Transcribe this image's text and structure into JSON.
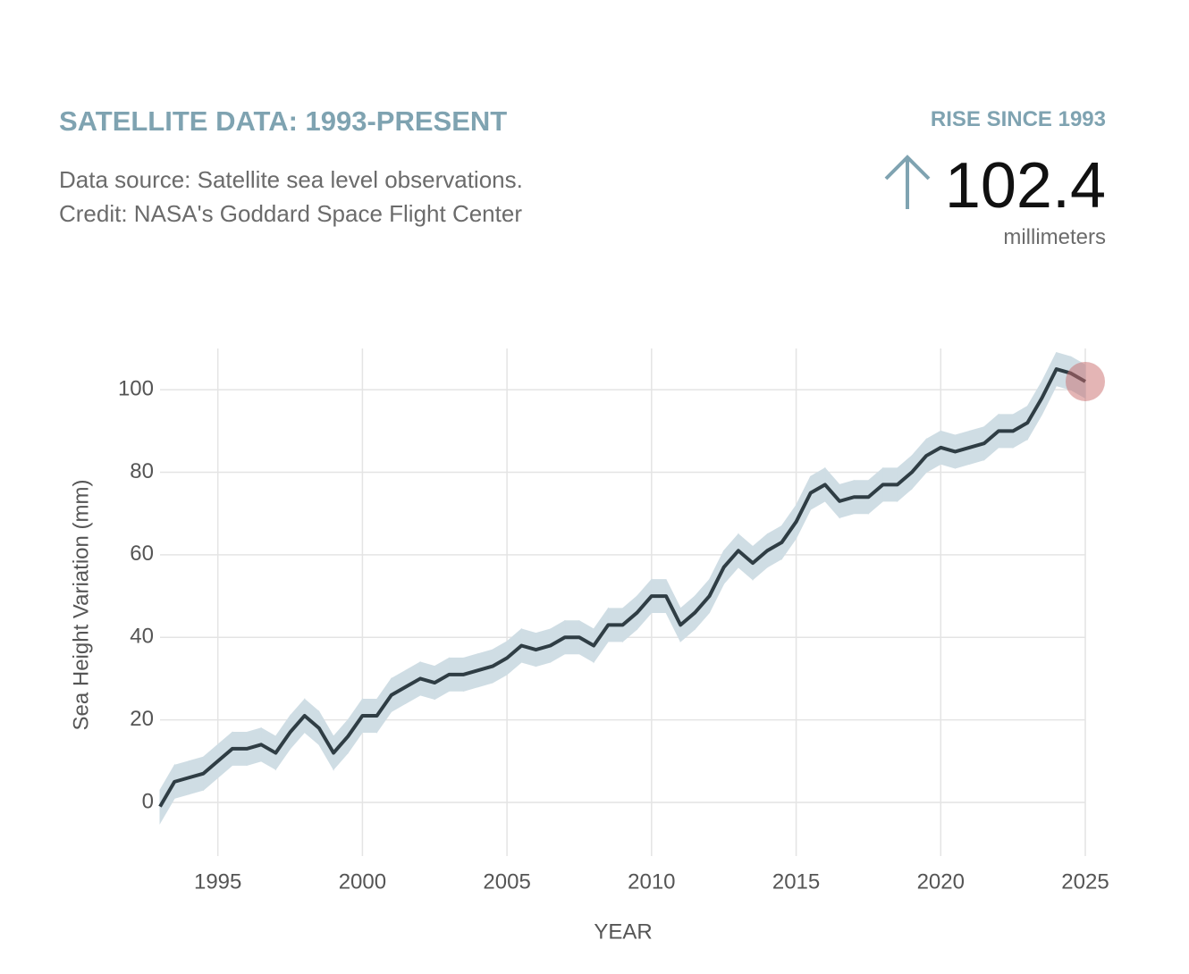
{
  "header": {
    "title": "SATELLITE DATA: 1993-PRESENT",
    "source": "Data source: Satellite sea level observations.",
    "credit": "Credit: NASA's Goddard Space Flight Center"
  },
  "summary": {
    "label": "RISE SINCE 1993",
    "value": 102.4,
    "unit": "millimeters"
  },
  "chart_data": {
    "type": "line",
    "x_label": "YEAR",
    "y_label": "Sea Height Variation (mm)",
    "x": [
      1993,
      1993.5,
      1994,
      1994.5,
      1995,
      1995.5,
      1996,
      1996.5,
      1997,
      1997.5,
      1998,
      1998.5,
      1999,
      1999.5,
      2000,
      2000.5,
      2001,
      2001.5,
      2002,
      2002.5,
      2003,
      2003.5,
      2004,
      2004.5,
      2005,
      2005.5,
      2006,
      2006.5,
      2007,
      2007.5,
      2008,
      2008.5,
      2009,
      2009.5,
      2010,
      2010.5,
      2011,
      2011.5,
      2012,
      2012.5,
      2013,
      2013.5,
      2014,
      2014.5,
      2015,
      2015.5,
      2016,
      2016.5,
      2017,
      2017.5,
      2018,
      2018.5,
      2019,
      2019.5,
      2020,
      2020.5,
      2021,
      2021.5,
      2022,
      2022.5,
      2023,
      2023.5,
      2024,
      2024.5,
      2025
    ],
    "values": [
      -1,
      5,
      6,
      7,
      10,
      13,
      13,
      14,
      12,
      17,
      21,
      18,
      12,
      16,
      21,
      21,
      26,
      28,
      30,
      29,
      31,
      31,
      32,
      33,
      35,
      38,
      37,
      38,
      40,
      40,
      38,
      43,
      43,
      46,
      50,
      50,
      43,
      46,
      50,
      57,
      61,
      58,
      61,
      63,
      68,
      75,
      77,
      73,
      74,
      74,
      77,
      77,
      80,
      84,
      86,
      85,
      86,
      87,
      90,
      90,
      92,
      98,
      105,
      104,
      102
    ],
    "upper": [
      3,
      9,
      10,
      11,
      14,
      17,
      17,
      18,
      16,
      21,
      25,
      22,
      16,
      20,
      25,
      25,
      30,
      32,
      34,
      33,
      35,
      35,
      36,
      37,
      39,
      42,
      41,
      42,
      44,
      44,
      42,
      47,
      47,
      50,
      54,
      54,
      47,
      50,
      54,
      61,
      65,
      62,
      65,
      67,
      72,
      79,
      81,
      77,
      78,
      78,
      81,
      81,
      84,
      88,
      90,
      89,
      90,
      91,
      94,
      94,
      96,
      102,
      109,
      108,
      106
    ],
    "lower": [
      -5,
      1,
      2,
      3,
      6,
      9,
      9,
      10,
      8,
      13,
      17,
      14,
      8,
      12,
      17,
      17,
      22,
      24,
      26,
      25,
      27,
      27,
      28,
      29,
      31,
      34,
      33,
      34,
      36,
      36,
      34,
      39,
      39,
      42,
      46,
      46,
      39,
      42,
      46,
      53,
      57,
      54,
      57,
      59,
      64,
      71,
      73,
      69,
      70,
      70,
      73,
      73,
      76,
      80,
      82,
      81,
      82,
      83,
      86,
      86,
      88,
      94,
      101,
      100,
      98
    ],
    "color": "#2f3d44",
    "band_color": "#cfdde4",
    "highlight_color": "#c96b6b",
    "xlim": [
      1993,
      2025
    ],
    "ylim": [
      -13,
      110
    ],
    "xticks": [
      1995,
      2000,
      2005,
      2010,
      2015,
      2020,
      2025
    ],
    "yticks": [
      0,
      20,
      40,
      60,
      80,
      100
    ],
    "grid": true
  }
}
